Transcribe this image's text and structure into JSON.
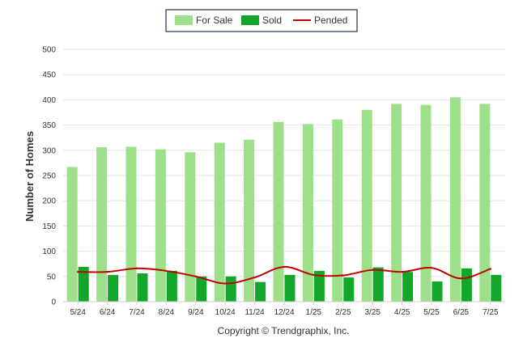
{
  "chart_data": {
    "type": "bar",
    "categories": [
      "5/24",
      "6/24",
      "7/24",
      "8/24",
      "9/24",
      "10/24",
      "11/24",
      "12/24",
      "1/25",
      "2/25",
      "3/25",
      "4/25",
      "5/25",
      "6/25",
      "7/25"
    ],
    "series": [
      {
        "name": "For Sale",
        "kind": "bar",
        "color": "#9ee08a",
        "values": [
          267,
          306,
          307,
          302,
          296,
          315,
          321,
          356,
          352,
          361,
          380,
          392,
          390,
          405,
          392
        ]
      },
      {
        "name": "Sold",
        "kind": "bar",
        "color": "#12a62b",
        "values": [
          69,
          53,
          56,
          61,
          50,
          50,
          39,
          53,
          61,
          48,
          68,
          59,
          40,
          66,
          53
        ]
      },
      {
        "name": "Pended",
        "kind": "line",
        "color": "#c00000",
        "values": [
          59,
          59,
          66,
          61,
          50,
          36,
          48,
          69,
          53,
          52,
          63,
          59,
          67,
          46,
          65
        ]
      }
    ],
    "ylabel": "Number of Homes",
    "xlabel": "",
    "ylim": [
      0,
      500
    ],
    "yticks": [
      0,
      50,
      100,
      150,
      200,
      250,
      300,
      350,
      400,
      450,
      500
    ],
    "grid": true,
    "legend_position": "top-center"
  },
  "copyright": "Copyright © Trendgraphix, Inc."
}
